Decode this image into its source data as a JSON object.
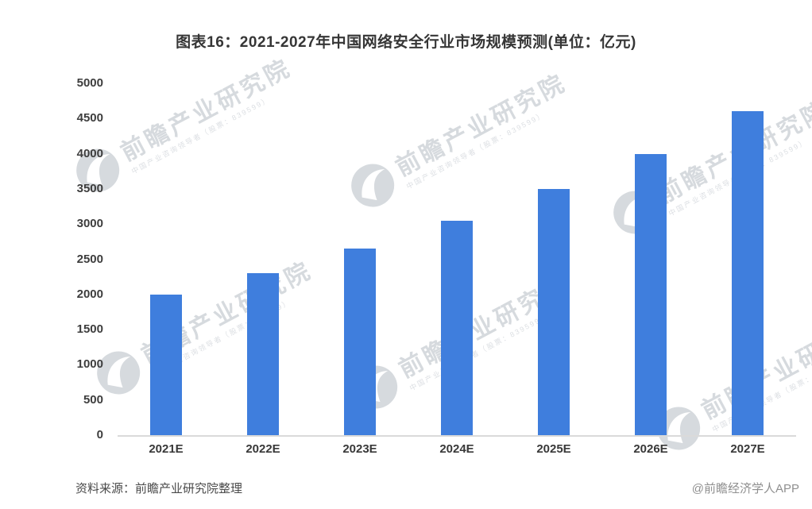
{
  "title": "图表16：2021-2027年中国网络安全行业市场规模预测(单位：亿元)",
  "source": "资料来源：前瞻产业研究院整理",
  "brand": "@前瞻经济学人APP",
  "watermark": {
    "logo": "qianzhan-logo-icon",
    "main": "前瞻产业研究院",
    "sub": "中国产业咨询领导者（股票：839599）"
  },
  "colors": {
    "bar": "#3f7edd",
    "axis_line": "#dadada",
    "title_text": "#363636",
    "tick_text": "#3d3d3d",
    "source_text": "#4a4a4a",
    "brand_text": "#8f8f8f",
    "watermark": "#d6dade"
  },
  "chart_data": {
    "type": "bar",
    "title": "图表16：2021-2027年中国网络安全行业市场规模预测(单位：亿元)",
    "unit": "亿元",
    "categories": [
      "2021E",
      "2022E",
      "2023E",
      "2024E",
      "2025E",
      "2026E",
      "2027E"
    ],
    "values": [
      2000,
      2300,
      2650,
      3050,
      3500,
      4000,
      4600
    ],
    "xlabel": "",
    "ylabel": "",
    "ylim": [
      0,
      5000
    ],
    "ytick_step": 500,
    "yticks": [
      0,
      500,
      1000,
      1500,
      2000,
      2500,
      3000,
      3500,
      4000,
      4500,
      5000
    ],
    "grid": false,
    "legend_position": "none",
    "bar_color": "#3f7edd"
  }
}
